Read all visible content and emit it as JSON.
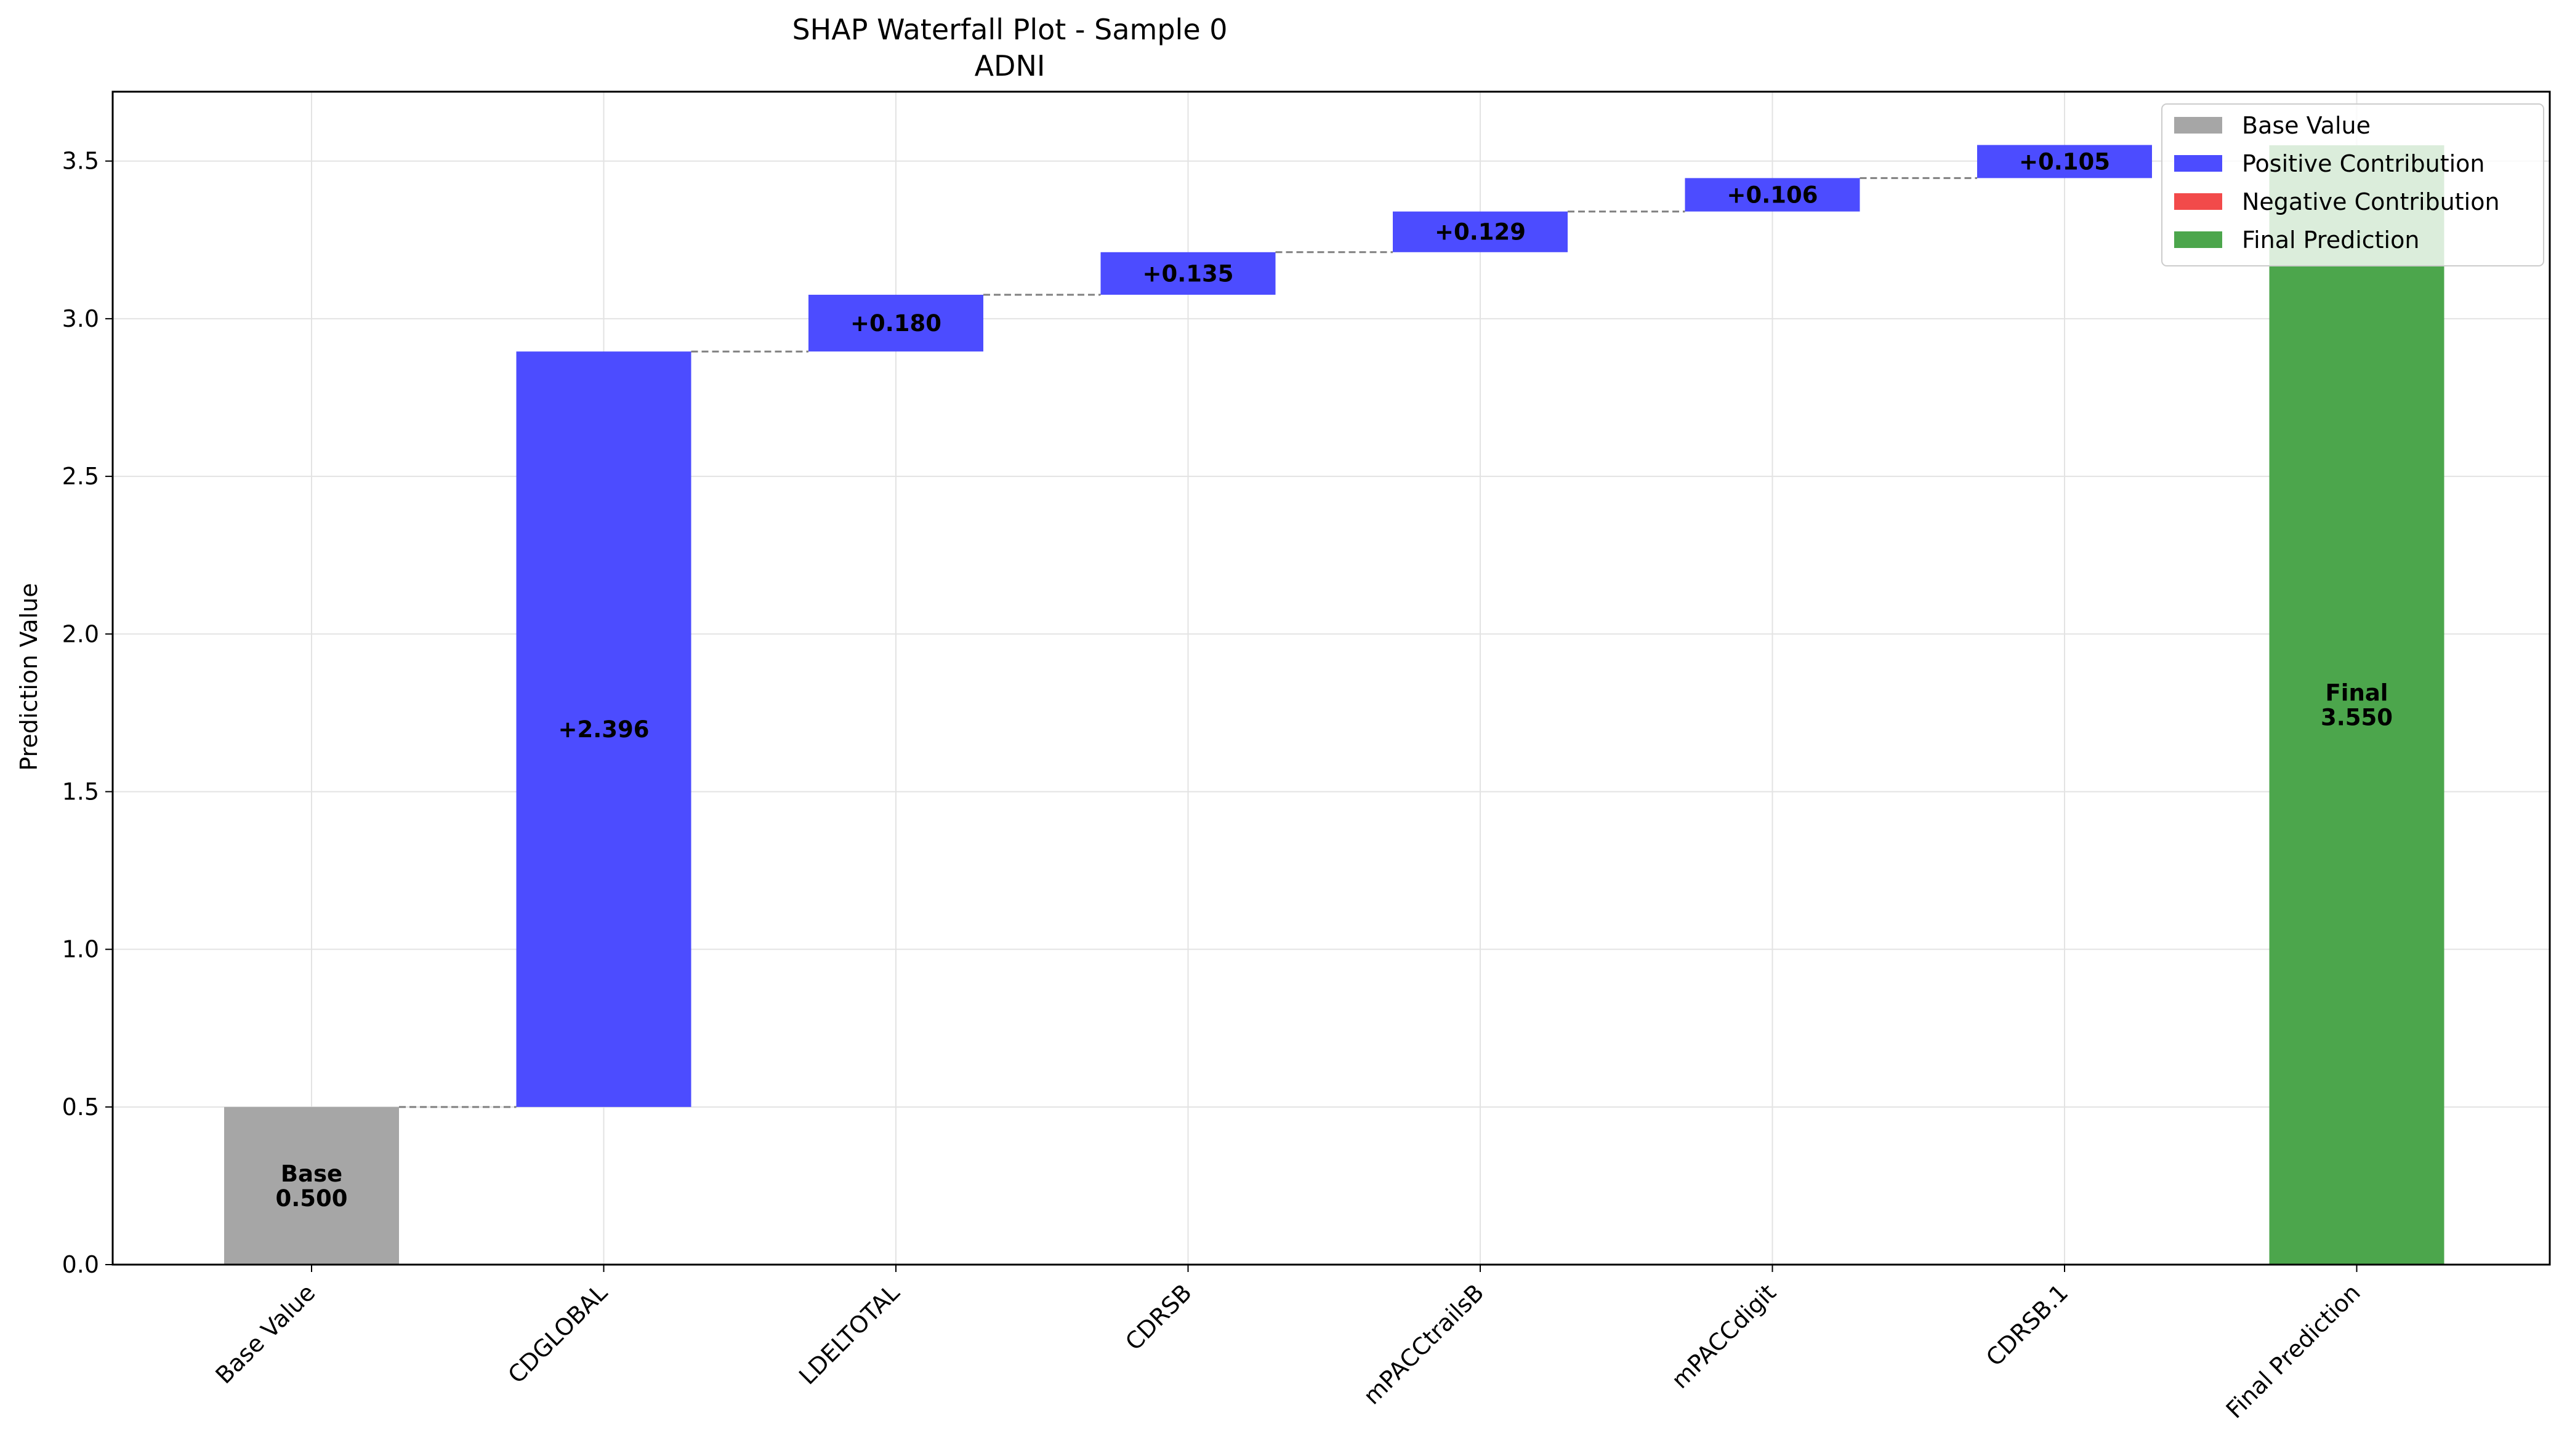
{
  "colors": {
    "base": "#a6a6a6",
    "positive": "#4c4cff",
    "negative": "#f24a4a",
    "final": "#4ca64c",
    "connector": "#808080",
    "grid": "#e3e3e3"
  },
  "chart_data": {
    "type": "bar",
    "subtype": "waterfall",
    "title": "SHAP Waterfall Plot - Sample 0",
    "subtitle": "ADNI",
    "xlabel": "",
    "ylabel": "Prediction Value",
    "ylim": [
      0,
      3.72
    ],
    "yticks": [
      "0.0",
      "0.5",
      "1.0",
      "1.5",
      "2.0",
      "2.5",
      "3.0",
      "3.5"
    ],
    "grid": true,
    "legend_position": "top-right",
    "categories": [
      "Base Value",
      "CDGLOBAL",
      "LDELTOTAL",
      "CDRSB",
      "mPACCtrailsB",
      "mPACCdigit",
      "CDRSB.1",
      "Final Prediction"
    ],
    "bars": [
      {
        "kind": "base",
        "start": 0,
        "end": 0.5,
        "label_lines": [
          "Base",
          "0.500"
        ]
      },
      {
        "kind": "positive",
        "start": 0.5,
        "end": 2.896,
        "label_lines": [
          "+2.396"
        ]
      },
      {
        "kind": "positive",
        "start": 2.896,
        "end": 3.076,
        "label_lines": [
          "+0.180"
        ]
      },
      {
        "kind": "positive",
        "start": 3.076,
        "end": 3.211,
        "label_lines": [
          "+0.135"
        ]
      },
      {
        "kind": "positive",
        "start": 3.211,
        "end": 3.34,
        "label_lines": [
          "+0.129"
        ]
      },
      {
        "kind": "positive",
        "start": 3.34,
        "end": 3.446,
        "label_lines": [
          "+0.106"
        ]
      },
      {
        "kind": "positive",
        "start": 3.446,
        "end": 3.551,
        "label_lines": [
          "+0.105"
        ]
      },
      {
        "kind": "final",
        "start": 0,
        "end": 3.55,
        "label_lines": [
          "Final",
          "3.550"
        ]
      }
    ],
    "legend": [
      {
        "label": "Base Value",
        "kind": "base"
      },
      {
        "label": "Positive Contribution",
        "kind": "positive"
      },
      {
        "label": "Negative Contribution",
        "kind": "negative"
      },
      {
        "label": "Final Prediction",
        "kind": "final"
      }
    ]
  }
}
